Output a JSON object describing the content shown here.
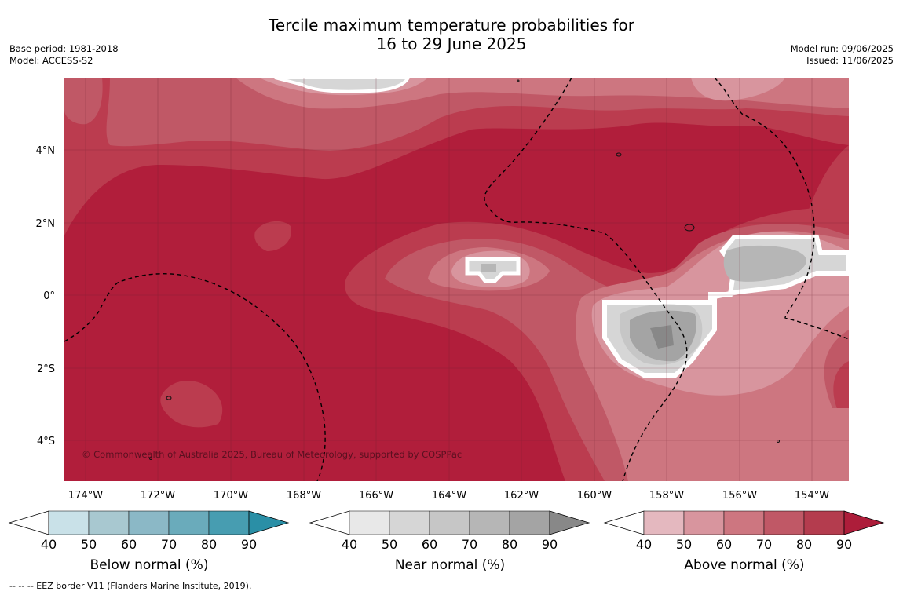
{
  "title_line1": "Tercile maximum temperature probabilities for",
  "title_line2": "16 to 29 June 2025",
  "base_period": "Base period: 1981-2018",
  "model": "Model: ACCESS-S2",
  "model_run": "Model run: 09/06/2025",
  "issued": "Issued: 11/06/2025",
  "copyright": "© Commonwealth of Australia 2025, Bureau of Meteorology, supported by COSPPac",
  "lon_labels": [
    "174°W",
    "172°W",
    "170°W",
    "168°W",
    "166°W",
    "164°W",
    "162°W",
    "160°W",
    "158°W",
    "156°W",
    "154°W"
  ],
  "lat_labels": [
    "4°N",
    "2°N",
    "0°",
    "2°S",
    "4°S"
  ],
  "colorbars": [
    {
      "label": "Below normal (%)",
      "ticks": [
        "40",
        "50",
        "60",
        "70",
        "80",
        "90"
      ],
      "colors": [
        "#c9e1e8",
        "#a8c8d0",
        "#8bb8c6",
        "#6aabbb",
        "#479db1",
        "#2a8fa6"
      ]
    },
    {
      "label": "Near normal (%)",
      "ticks": [
        "40",
        "50",
        "60",
        "70",
        "80",
        "90"
      ],
      "colors": [
        "#e8e8e8",
        "#d6d6d6",
        "#c6c6c6",
        "#b6b6b6",
        "#a4a4a4",
        "#888888"
      ]
    },
    {
      "label": "Above normal (%)",
      "ticks": [
        "40",
        "50",
        "60",
        "70",
        "80",
        "90"
      ],
      "colors": [
        "#e4b8bf",
        "#d8959e",
        "#cd7680",
        "#c05866",
        "#b43c4e",
        "#ad1d3a"
      ]
    }
  ],
  "footer": "--  --  -- EEZ border V11 (Flanders Marine Institute, 2019)."
}
